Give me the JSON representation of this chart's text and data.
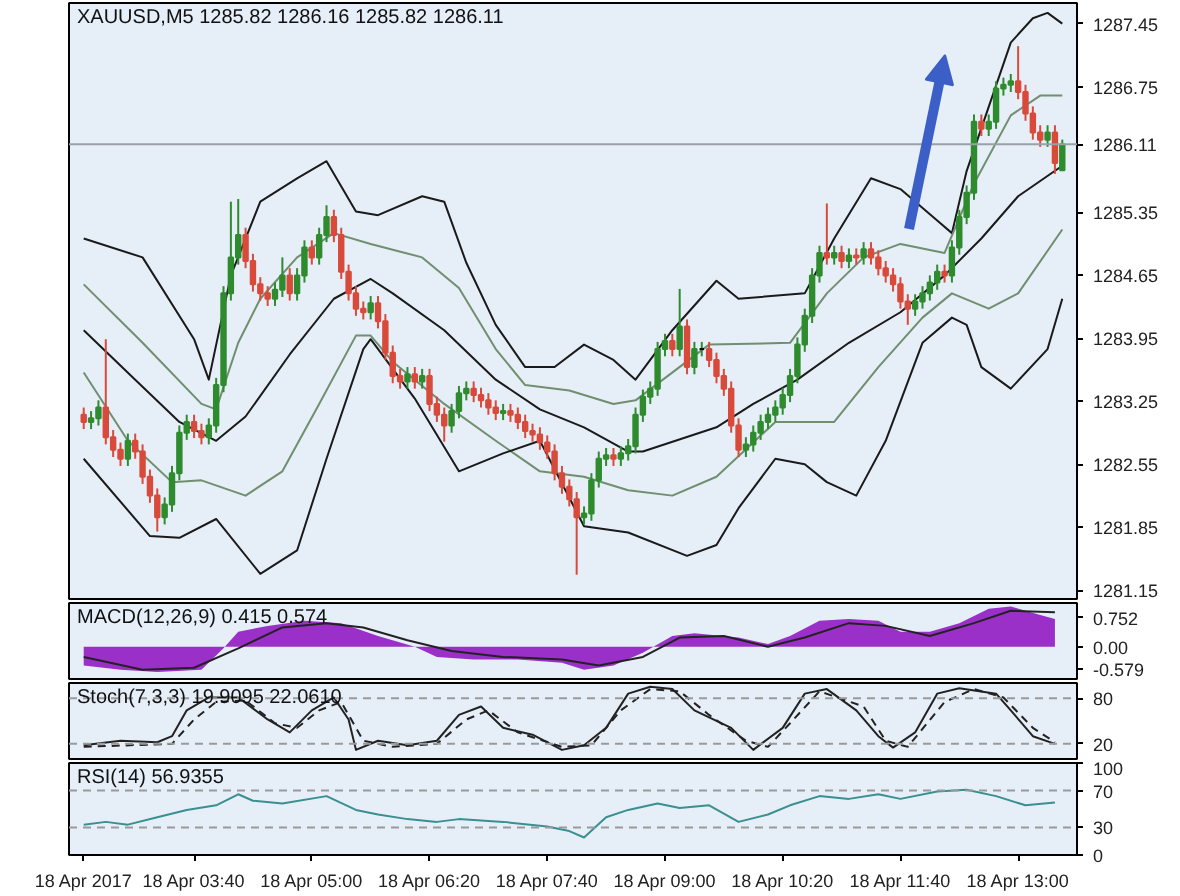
{
  "chart_data": [
    {
      "type": "candlestick",
      "title": "XAUUSD,M5 1285.82 1286.16 1285.82 1286.11",
      "xlim": [
        "2017-04-18T02:15",
        "2017-04-18T13:40"
      ],
      "ylim": [
        1281.05,
        1287.68
      ],
      "yticks": [
        1287.45,
        1286.75,
        1285.35,
        1284.65,
        1283.95,
        1283.25,
        1282.55,
        1281.85,
        1281.15
      ],
      "tick_labels": "y",
      "grid": false,
      "x": [
        "2017-04-18T02:25",
        "2017-04-18T02:30",
        "2017-04-18T02:35",
        "2017-04-18T02:40",
        "2017-04-18T02:45",
        "2017-04-18T02:50",
        "2017-04-18T02:55",
        "2017-04-18T03:00",
        "2017-04-18T03:05",
        "2017-04-18T03:10",
        "2017-04-18T03:15",
        "2017-04-18T03:20",
        "2017-04-18T03:25",
        "2017-04-18T03:30",
        "2017-04-18T03:35",
        "2017-04-18T03:40",
        "2017-04-18T03:45",
        "2017-04-18T03:50",
        "2017-04-18T03:55",
        "2017-04-18T04:00",
        "2017-04-18T04:05",
        "2017-04-18T04:10",
        "2017-04-18T04:15",
        "2017-04-18T04:20",
        "2017-04-18T04:25",
        "2017-04-18T04:30",
        "2017-04-18T04:35",
        "2017-04-18T04:40",
        "2017-04-18T04:45",
        "2017-04-18T04:50",
        "2017-04-18T04:55",
        "2017-04-18T05:00",
        "2017-04-18T05:05",
        "2017-04-18T05:10",
        "2017-04-18T05:15",
        "2017-04-18T05:20",
        "2017-04-18T05:25",
        "2017-04-18T05:30",
        "2017-04-18T05:35",
        "2017-04-18T05:40",
        "2017-04-18T05:45",
        "2017-04-18T05:50",
        "2017-04-18T05:55",
        "2017-04-18T06:00",
        "2017-04-18T06:05",
        "2017-04-18T06:10",
        "2017-04-18T06:15",
        "2017-04-18T06:20",
        "2017-04-18T06:25",
        "2017-04-18T06:30",
        "2017-04-18T06:35",
        "2017-04-18T06:40",
        "2017-04-18T06:45",
        "2017-04-18T06:50",
        "2017-04-18T06:55",
        "2017-04-18T07:00",
        "2017-04-18T07:05",
        "2017-04-18T07:10",
        "2017-04-18T07:15",
        "2017-04-18T07:20",
        "2017-04-18T07:25",
        "2017-04-18T07:30",
        "2017-04-18T07:35",
        "2017-04-18T07:40",
        "2017-04-18T07:45",
        "2017-04-18T07:50",
        "2017-04-18T07:55",
        "2017-04-18T08:00",
        "2017-04-18T08:05",
        "2017-04-18T08:10",
        "2017-04-18T08:15",
        "2017-04-18T08:20",
        "2017-04-18T08:25",
        "2017-04-18T08:30",
        "2017-04-18T08:35",
        "2017-04-18T08:40",
        "2017-04-18T08:45",
        "2017-04-18T08:50",
        "2017-04-18T08:55",
        "2017-04-18T09:00",
        "2017-04-18T09:05",
        "2017-04-18T09:10",
        "2017-04-18T09:15",
        "2017-04-18T09:20",
        "2017-04-18T09:25",
        "2017-04-18T09:30",
        "2017-04-18T09:35",
        "2017-04-18T09:40",
        "2017-04-18T09:45",
        "2017-04-18T09:50",
        "2017-04-18T09:55",
        "2017-04-18T10:00",
        "2017-04-18T10:05",
        "2017-04-18T10:10",
        "2017-04-18T10:15",
        "2017-04-18T10:20",
        "2017-04-18T10:25",
        "2017-04-18T10:30",
        "2017-04-18T10:35",
        "2017-04-18T10:40",
        "2017-04-18T10:45",
        "2017-04-18T10:50",
        "2017-04-18T10:55",
        "2017-04-18T11:00",
        "2017-04-18T11:05",
        "2017-04-18T11:10",
        "2017-04-18T11:15",
        "2017-04-18T11:20",
        "2017-04-18T11:25",
        "2017-04-18T11:30",
        "2017-04-18T11:35",
        "2017-04-18T11:40",
        "2017-04-18T11:45",
        "2017-04-18T11:50",
        "2017-04-18T11:55",
        "2017-04-18T12:00",
        "2017-04-18T12:05",
        "2017-04-18T12:10",
        "2017-04-18T12:15",
        "2017-04-18T12:20",
        "2017-04-18T12:25",
        "2017-04-18T12:30",
        "2017-04-18T12:35",
        "2017-04-18T12:40",
        "2017-04-18T12:45",
        "2017-04-18T12:50",
        "2017-04-18T12:55",
        "2017-04-18T13:00",
        "2017-04-18T13:05",
        "2017-04-18T13:10",
        "2017-04-18T13:15",
        "2017-04-18T13:20",
        "2017-04-18T13:25",
        "2017-04-18T13:30"
      ],
      "ohlc": [
        [
          1283.1,
          1283.18,
          1282.94,
          1283.02
        ],
        [
          1283.02,
          1283.14,
          1282.94,
          1283.06
        ],
        [
          1283.06,
          1283.26,
          1282.98,
          1283.18
        ],
        [
          1283.18,
          1283.94,
          1282.77,
          1282.85
        ],
        [
          1282.85,
          1282.93,
          1282.63,
          1282.71
        ],
        [
          1282.71,
          1282.79,
          1282.53,
          1282.61
        ],
        [
          1282.61,
          1282.89,
          1282.53,
          1282.81
        ],
        [
          1282.81,
          1282.89,
          1282.61,
          1282.69
        ],
        [
          1282.69,
          1282.77,
          1282.33,
          1282.41
        ],
        [
          1282.41,
          1282.49,
          1282.12,
          1282.2
        ],
        [
          1282.2,
          1282.28,
          1281.8,
          1281.96
        ],
        [
          1281.96,
          1282.18,
          1281.88,
          1282.1
        ],
        [
          1282.1,
          1282.53,
          1282.02,
          1282.45
        ],
        [
          1282.45,
          1282.98,
          1282.37,
          1282.9
        ],
        [
          1282.9,
          1283.1,
          1282.82,
          1283.02
        ],
        [
          1283.02,
          1283.1,
          1282.84,
          1282.92
        ],
        [
          1282.92,
          1283.0,
          1282.77,
          1282.85
        ],
        [
          1282.85,
          1283.06,
          1282.77,
          1282.98
        ],
        [
          1282.98,
          1283.51,
          1282.9,
          1283.43
        ],
        [
          1283.43,
          1284.53,
          1283.35,
          1284.45
        ],
        [
          1284.45,
          1285.47,
          1284.37,
          1284.85
        ],
        [
          1284.85,
          1285.5,
          1284.77,
          1285.1
        ],
        [
          1285.1,
          1285.18,
          1284.73,
          1284.81
        ],
        [
          1284.81,
          1284.89,
          1284.47,
          1284.55
        ],
        [
          1284.55,
          1284.63,
          1284.37,
          1284.45
        ],
        [
          1284.45,
          1284.53,
          1284.31,
          1284.39
        ],
        [
          1284.39,
          1284.57,
          1284.31,
          1284.49
        ],
        [
          1284.49,
          1284.85,
          1284.41,
          1284.65
        ],
        [
          1284.65,
          1284.73,
          1284.37,
          1284.45
        ],
        [
          1284.45,
          1284.73,
          1284.37,
          1284.65
        ],
        [
          1284.65,
          1285.04,
          1284.57,
          1284.96
        ],
        [
          1284.96,
          1285.04,
          1284.77,
          1284.85
        ],
        [
          1284.85,
          1285.18,
          1284.77,
          1285.1
        ],
        [
          1285.1,
          1285.43,
          1285.02,
          1285.3
        ],
        [
          1285.3,
          1285.38,
          1285.02,
          1285.1
        ],
        [
          1285.1,
          1285.18,
          1284.61,
          1284.69
        ],
        [
          1284.69,
          1284.77,
          1284.37,
          1284.45
        ],
        [
          1284.45,
          1284.53,
          1284.2,
          1284.28
        ],
        [
          1284.28,
          1284.36,
          1284.16,
          1284.24
        ],
        [
          1284.24,
          1284.42,
          1284.16,
          1284.34
        ],
        [
          1284.34,
          1284.42,
          1284.06,
          1284.14
        ],
        [
          1284.14,
          1284.22,
          1283.71,
          1283.79
        ],
        [
          1283.79,
          1283.87,
          1283.45,
          1283.53
        ],
        [
          1283.53,
          1283.61,
          1283.39,
          1283.47
        ],
        [
          1283.47,
          1283.63,
          1283.39,
          1283.55
        ],
        [
          1283.55,
          1283.63,
          1283.39,
          1283.47
        ],
        [
          1283.47,
          1283.61,
          1283.39,
          1283.53
        ],
        [
          1283.53,
          1283.61,
          1283.14,
          1283.22
        ],
        [
          1283.22,
          1283.3,
          1283.02,
          1283.1
        ],
        [
          1283.1,
          1283.18,
          1282.8,
          1282.98
        ],
        [
          1282.98,
          1283.22,
          1282.9,
          1283.14
        ],
        [
          1283.14,
          1283.42,
          1283.06,
          1283.34
        ],
        [
          1283.34,
          1283.47,
          1283.26,
          1283.39
        ],
        [
          1283.39,
          1283.47,
          1283.24,
          1283.32
        ],
        [
          1283.32,
          1283.4,
          1283.18,
          1283.26
        ],
        [
          1283.26,
          1283.34,
          1283.1,
          1283.18
        ],
        [
          1283.18,
          1283.26,
          1283.04,
          1283.12
        ],
        [
          1283.12,
          1283.22,
          1283.04,
          1283.14
        ],
        [
          1283.14,
          1283.22,
          1283.02,
          1283.1
        ],
        [
          1283.1,
          1283.18,
          1282.94,
          1283.02
        ],
        [
          1283.02,
          1283.1,
          1282.84,
          1282.92
        ],
        [
          1282.92,
          1283.0,
          1282.8,
          1282.88
        ],
        [
          1282.88,
          1282.96,
          1282.71,
          1282.79
        ],
        [
          1282.79,
          1282.87,
          1282.61,
          1282.69
        ],
        [
          1282.69,
          1282.77,
          1282.37,
          1282.45
        ],
        [
          1282.45,
          1282.53,
          1282.22,
          1282.3
        ],
        [
          1282.3,
          1282.38,
          1282.08,
          1282.16
        ],
        [
          1282.16,
          1282.24,
          1281.32,
          1281.96
        ],
        [
          1281.96,
          1282.08,
          1281.88,
          1282.0
        ],
        [
          1282.0,
          1282.45,
          1281.92,
          1282.37
        ],
        [
          1282.37,
          1282.69,
          1282.29,
          1282.61
        ],
        [
          1282.61,
          1282.73,
          1282.53,
          1282.65
        ],
        [
          1282.65,
          1282.73,
          1282.53,
          1282.61
        ],
        [
          1282.61,
          1282.75,
          1282.53,
          1282.67
        ],
        [
          1282.67,
          1282.83,
          1282.59,
          1282.75
        ],
        [
          1282.75,
          1283.18,
          1282.67,
          1283.1
        ],
        [
          1283.1,
          1283.38,
          1283.02,
          1283.3
        ],
        [
          1283.3,
          1283.47,
          1283.22,
          1283.39
        ],
        [
          1283.39,
          1283.91,
          1283.31,
          1283.83
        ],
        [
          1283.83,
          1284.0,
          1283.75,
          1283.92
        ],
        [
          1283.92,
          1284.0,
          1283.75,
          1283.83
        ],
        [
          1283.83,
          1284.5,
          1283.75,
          1284.08
        ],
        [
          1284.08,
          1284.16,
          1283.55,
          1283.63
        ],
        [
          1283.63,
          1283.91,
          1283.55,
          1283.83
        ],
        [
          1283.83,
          1283.91,
          1283.75,
          1283.83
        ],
        [
          1283.83,
          1283.91,
          1283.63,
          1283.71
        ],
        [
          1283.71,
          1283.79,
          1283.45,
          1283.53
        ],
        [
          1283.53,
          1283.61,
          1283.31,
          1283.39
        ],
        [
          1283.39,
          1283.47,
          1282.9,
          1282.98
        ],
        [
          1282.98,
          1283.06,
          1282.63,
          1282.71
        ],
        [
          1282.71,
          1282.85,
          1282.63,
          1282.77
        ],
        [
          1282.77,
          1282.98,
          1282.69,
          1282.9
        ],
        [
          1282.9,
          1283.1,
          1282.82,
          1283.02
        ],
        [
          1283.02,
          1283.18,
          1282.94,
          1283.1
        ],
        [
          1283.1,
          1283.26,
          1283.02,
          1283.18
        ],
        [
          1283.18,
          1283.4,
          1283.1,
          1283.32
        ],
        [
          1283.32,
          1283.61,
          1283.24,
          1283.53
        ],
        [
          1283.53,
          1283.96,
          1283.45,
          1283.88
        ],
        [
          1283.88,
          1284.28,
          1283.8,
          1284.2
        ],
        [
          1284.2,
          1284.73,
          1284.12,
          1284.65
        ],
        [
          1284.65,
          1284.98,
          1284.57,
          1284.9
        ],
        [
          1284.9,
          1285.45,
          1284.77,
          1284.85
        ],
        [
          1284.85,
          1284.98,
          1284.77,
          1284.9
        ],
        [
          1284.9,
          1284.98,
          1284.73,
          1284.81
        ],
        [
          1284.81,
          1284.95,
          1284.73,
          1284.87
        ],
        [
          1284.87,
          1284.95,
          1284.77,
          1284.85
        ],
        [
          1284.85,
          1285.02,
          1284.77,
          1284.94
        ],
        [
          1284.94,
          1285.02,
          1284.77,
          1284.85
        ],
        [
          1284.85,
          1284.93,
          1284.65,
          1284.73
        ],
        [
          1284.73,
          1284.81,
          1284.57,
          1284.65
        ],
        [
          1284.65,
          1284.73,
          1284.47,
          1284.55
        ],
        [
          1284.55,
          1284.63,
          1284.28,
          1284.36
        ],
        [
          1284.36,
          1284.44,
          1284.1,
          1284.28
        ],
        [
          1284.28,
          1284.44,
          1284.2,
          1284.36
        ],
        [
          1284.36,
          1284.53,
          1284.28,
          1284.45
        ],
        [
          1284.45,
          1284.65,
          1284.37,
          1284.57
        ],
        [
          1284.57,
          1284.77,
          1284.49,
          1284.69
        ],
        [
          1284.69,
          1284.77,
          1284.57,
          1284.65
        ],
        [
          1284.65,
          1285.04,
          1284.57,
          1284.96
        ],
        [
          1284.96,
          1285.38,
          1284.88,
          1285.3
        ],
        [
          1285.3,
          1285.65,
          1285.22,
          1285.57
        ],
        [
          1285.57,
          1286.44,
          1285.49,
          1286.36
        ],
        [
          1286.36,
          1286.44,
          1286.2,
          1286.28
        ],
        [
          1286.28,
          1286.44,
          1286.2,
          1286.36
        ],
        [
          1286.36,
          1286.81,
          1286.28,
          1286.73
        ],
        [
          1286.73,
          1286.85,
          1286.65,
          1286.77
        ],
        [
          1286.77,
          1286.89,
          1286.69,
          1286.81
        ],
        [
          1286.81,
          1287.2,
          1286.61,
          1286.69
        ],
        [
          1286.69,
          1286.77,
          1286.37,
          1286.45
        ],
        [
          1286.45,
          1286.53,
          1286.16,
          1286.24
        ],
        [
          1286.24,
          1286.32,
          1286.08,
          1286.16
        ],
        [
          1286.16,
          1286.32,
          1286.08,
          1286.24
        ],
        [
          1286.24,
          1286.32,
          1285.78,
          1285.9
        ],
        [
          1285.82,
          1286.16,
          1285.82,
          1286.11
        ]
      ],
      "series": [
        {
          "type": "line",
          "color": "#1a1a1a",
          "x": [
            "2017-04-18T02:25",
            "2017-04-18T03:05",
            "2017-04-18T03:40",
            "2017-04-18T03:50",
            "2017-04-18T04:05",
            "2017-04-18T04:25",
            "2017-04-18T04:50",
            "2017-04-18T05:10",
            "2017-04-18T05:30",
            "2017-04-18T05:45",
            "2017-04-18T06:15",
            "2017-04-18T06:30",
            "2017-04-18T06:45",
            "2017-04-18T07:05",
            "2017-04-18T07:25",
            "2017-04-18T07:45",
            "2017-04-18T08:05",
            "2017-04-18T08:25",
            "2017-04-18T08:40",
            "2017-04-18T09:05",
            "2017-04-18T09:35",
            "2017-04-18T09:50",
            "2017-04-18T10:35",
            "2017-04-18T10:55",
            "2017-04-18T11:20",
            "2017-04-18T11:40",
            "2017-04-18T12:05",
            "2017-04-18T12:15",
            "2017-04-18T12:25",
            "2017-04-18T12:55",
            "2017-04-18T13:10",
            "2017-04-18T13:20",
            "2017-04-18T13:30"
          ],
          "values": [
            1285.06,
            1284.85,
            1283.94,
            1283.49,
            1284.65,
            1285.47,
            1285.73,
            1285.92,
            1285.36,
            1285.32,
            1285.53,
            1285.47,
            1284.79,
            1284.1,
            1283.63,
            1283.63,
            1283.88,
            1283.71,
            1283.49,
            1284.04,
            1284.59,
            1284.39,
            1284.45,
            1285.06,
            1285.73,
            1285.61,
            1285.26,
            1285.12,
            1285.81,
            1287.24,
            1287.51,
            1287.57,
            1287.45
          ]
        },
        {
          "type": "line",
          "color": "#6f8f6f",
          "x": [
            "2017-04-18T02:25",
            "2017-04-18T03:05",
            "2017-04-18T03:45",
            "2017-04-18T03:55",
            "2017-04-18T04:10",
            "2017-04-18T04:25",
            "2017-04-18T04:50",
            "2017-04-18T05:15",
            "2017-04-18T05:40",
            "2017-04-18T06:15",
            "2017-04-18T06:40",
            "2017-04-18T07:05",
            "2017-04-18T07:25",
            "2017-04-18T07:55",
            "2017-04-18T08:25",
            "2017-04-18T08:40",
            "2017-04-18T09:30",
            "2017-04-18T10:25",
            "2017-04-18T10:50",
            "2017-04-18T11:15",
            "2017-04-18T11:40",
            "2017-04-18T12:10",
            "2017-04-18T12:30",
            "2017-04-18T12:55",
            "2017-04-18T13:15",
            "2017-04-18T13:30"
          ],
          "values": [
            1284.55,
            1283.9,
            1283.22,
            1283.16,
            1283.9,
            1284.39,
            1284.85,
            1285.12,
            1285.0,
            1284.85,
            1284.51,
            1283.83,
            1283.43,
            1283.37,
            1283.22,
            1283.26,
            1283.88,
            1283.9,
            1284.45,
            1284.85,
            1285.0,
            1284.9,
            1285.67,
            1286.43,
            1286.65,
            1286.65
          ]
        },
        {
          "type": "line",
          "color": "#1a1a1a",
          "x": [
            "2017-04-18T02:25",
            "2017-04-18T03:00",
            "2017-04-18T03:30",
            "2017-04-18T03:55",
            "2017-04-18T04:15",
            "2017-04-18T04:45",
            "2017-04-18T05:15",
            "2017-04-18T05:40",
            "2017-04-18T05:55",
            "2017-04-18T06:30",
            "2017-04-18T07:05",
            "2017-04-18T07:35",
            "2017-04-18T08:05",
            "2017-04-18T08:35",
            "2017-04-18T08:45",
            "2017-04-18T09:35",
            "2017-04-18T10:00",
            "2017-04-18T10:30",
            "2017-04-18T11:05",
            "2017-04-18T11:40",
            "2017-04-18T12:10",
            "2017-04-18T12:35",
            "2017-04-18T13:00",
            "2017-04-18T13:30"
          ],
          "values": [
            1284.04,
            1283.49,
            1283.02,
            1282.81,
            1283.08,
            1283.77,
            1284.39,
            1284.61,
            1284.45,
            1284.04,
            1283.49,
            1283.16,
            1282.96,
            1282.69,
            1282.69,
            1282.96,
            1283.22,
            1283.49,
            1283.9,
            1284.24,
            1284.65,
            1285.06,
            1285.53,
            1285.87
          ]
        },
        {
          "type": "line",
          "color": "#6f8f6f",
          "x": [
            "2017-04-18T02:25",
            "2017-04-18T02:55",
            "2017-04-18T03:25",
            "2017-04-18T03:45",
            "2017-04-18T04:15",
            "2017-04-18T04:40",
            "2017-04-18T05:05",
            "2017-04-18T05:30",
            "2017-04-18T05:40",
            "2017-04-18T05:55",
            "2017-04-18T06:30",
            "2017-04-18T07:05",
            "2017-04-18T07:35",
            "2017-04-18T08:05",
            "2017-04-18T08:35",
            "2017-04-18T09:05",
            "2017-04-18T09:35",
            "2017-04-18T10:15",
            "2017-04-18T10:55",
            "2017-04-18T11:25",
            "2017-04-18T11:55",
            "2017-04-18T12:15",
            "2017-04-18T12:40",
            "2017-04-18T13:00",
            "2017-04-18T13:30"
          ],
          "values": [
            1283.57,
            1282.81,
            1282.35,
            1282.37,
            1282.2,
            1282.47,
            1283.22,
            1283.98,
            1283.98,
            1283.69,
            1283.22,
            1282.81,
            1282.47,
            1282.41,
            1282.26,
            1282.2,
            1282.41,
            1283.02,
            1283.02,
            1283.63,
            1284.18,
            1284.45,
            1284.28,
            1284.45,
            1285.16
          ]
        },
        {
          "type": "line",
          "color": "#1a1a1a",
          "x": [
            "2017-04-18T02:25",
            "2017-04-18T03:10",
            "2017-04-18T03:30",
            "2017-04-18T03:55",
            "2017-04-18T04:25",
            "2017-04-18T04:50",
            "2017-04-18T05:10",
            "2017-04-18T05:35",
            "2017-04-18T05:40",
            "2017-04-18T06:10",
            "2017-04-18T06:40",
            "2017-04-18T07:10",
            "2017-04-18T07:35",
            "2017-04-18T08:05",
            "2017-04-18T08:35",
            "2017-04-18T09:15",
            "2017-04-18T09:35",
            "2017-04-18T09:50",
            "2017-04-18T10:15",
            "2017-04-18T10:35",
            "2017-04-18T10:50",
            "2017-04-18T11:10",
            "2017-04-18T11:30",
            "2017-04-18T11:55",
            "2017-04-18T12:15",
            "2017-04-18T12:25",
            "2017-04-18T12:35",
            "2017-04-18T12:55",
            "2017-04-18T13:20",
            "2017-04-18T13:30"
          ],
          "values": [
            1282.61,
            1281.75,
            1281.73,
            1281.94,
            1281.33,
            1281.59,
            1282.61,
            1283.83,
            1283.94,
            1283.28,
            1282.47,
            1282.67,
            1282.81,
            1281.86,
            1281.79,
            1281.53,
            1281.65,
            1282.06,
            1282.61,
            1282.55,
            1282.35,
            1282.2,
            1282.81,
            1283.9,
            1284.18,
            1284.1,
            1283.63,
            1283.39,
            1283.83,
            1284.39
          ]
        }
      ],
      "ref_lines": [
        {
          "axis": "y",
          "value": 1286.11,
          "label": "1286.11",
          "color": "#9aa0a8"
        }
      ]
    },
    {
      "type": "area",
      "title": "MACD(12,26,9) 0.415 0.574",
      "xlim": [
        "2017-04-18T02:15",
        "2017-04-18T13:40"
      ],
      "ylim": [
        -0.83,
        1.13
      ],
      "yticks": [
        0.752,
        {
          "value": 0,
          "label": "0.00"
        },
        -0.579
      ],
      "tick_labels": "y",
      "grid": false,
      "series": [
        {
          "type": "area",
          "color": "#9b30c8",
          "x": [
            "2017-04-18T02:25",
            "2017-04-18T02:50",
            "2017-04-18T03:15",
            "2017-04-18T03:45",
            "2017-04-18T04:00",
            "2017-04-18T04:10",
            "2017-04-18T04:30",
            "2017-04-18T04:55",
            "2017-04-18T05:20",
            "2017-04-18T05:45",
            "2017-04-18T06:10",
            "2017-04-18T06:25",
            "2017-04-18T06:50",
            "2017-04-18T07:20",
            "2017-04-18T07:50",
            "2017-04-18T08:05",
            "2017-04-18T08:25",
            "2017-04-18T08:45",
            "2017-04-18T09:05",
            "2017-04-18T09:20",
            "2017-04-18T09:50",
            "2017-04-18T10:10",
            "2017-04-18T10:25",
            "2017-04-18T10:45",
            "2017-04-18T11:05",
            "2017-04-18T11:25",
            "2017-04-18T11:40",
            "2017-04-18T12:00",
            "2017-04-18T12:20",
            "2017-04-18T12:40",
            "2017-04-18T12:55",
            "2017-04-18T13:15",
            "2017-04-18T13:25"
          ],
          "values": [
            -0.48,
            -0.59,
            -0.65,
            -0.59,
            -0.04,
            0.39,
            0.54,
            0.67,
            0.61,
            0.28,
            0,
            -0.26,
            -0.33,
            -0.33,
            -0.41,
            -0.59,
            -0.48,
            -0.15,
            0.28,
            0.35,
            0.24,
            0.07,
            0.28,
            0.67,
            0.72,
            0.67,
            0.39,
            0.39,
            0.61,
            0.98,
            1.04,
            0.82,
            0.72
          ]
        },
        {
          "type": "line",
          "color": "#222222",
          "x": [
            "2017-04-18T02:25",
            "2017-04-18T03:05",
            "2017-04-18T03:40",
            "2017-04-18T04:10",
            "2017-04-18T04:40",
            "2017-04-18T05:10",
            "2017-04-18T05:35",
            "2017-04-18T06:05",
            "2017-04-18T06:35",
            "2017-04-18T07:10",
            "2017-04-18T07:50",
            "2017-04-18T08:15",
            "2017-04-18T08:45",
            "2017-04-18T09:10",
            "2017-04-18T09:40",
            "2017-04-18T10:10",
            "2017-04-18T10:35",
            "2017-04-18T11:05",
            "2017-04-18T11:30",
            "2017-04-18T12:00",
            "2017-04-18T12:30",
            "2017-04-18T12:55",
            "2017-04-18T13:25"
          ],
          "values": [
            -0.26,
            -0.59,
            -0.54,
            -0.04,
            0.5,
            0.61,
            0.5,
            0.17,
            -0.11,
            -0.26,
            -0.33,
            -0.48,
            -0.26,
            0.24,
            0.28,
            0,
            0.24,
            0.61,
            0.54,
            0.28,
            0.61,
            0.93,
            0.89
          ]
        }
      ]
    },
    {
      "type": "line",
      "title": "Stoch(7,3,3) 19.9095 22.0610",
      "xlim": [
        "2017-04-18T02:15",
        "2017-04-18T13:40"
      ],
      "ylim": [
        0,
        100
      ],
      "yticks": [
        80,
        20
      ],
      "tick_labels": "y",
      "grid": false,
      "series": [
        {
          "color": "#222222",
          "line_style": "solid",
          "x": [
            "2017-04-18T02:25",
            "2017-04-18T02:50",
            "2017-04-18T03:15",
            "2017-04-18T03:25",
            "2017-04-18T03:35",
            "2017-04-18T03:50",
            "2017-04-18T04:10",
            "2017-04-18T04:30",
            "2017-04-18T04:45",
            "2017-04-18T05:00",
            "2017-04-18T05:15",
            "2017-04-18T05:25",
            "2017-04-18T05:30",
            "2017-04-18T05:45",
            "2017-04-18T06:05",
            "2017-04-18T06:25",
            "2017-04-18T06:40",
            "2017-04-18T06:55",
            "2017-04-18T07:10",
            "2017-04-18T07:30",
            "2017-04-18T07:50",
            "2017-04-18T08:05",
            "2017-04-18T08:20",
            "2017-04-18T08:35",
            "2017-04-18T08:50",
            "2017-04-18T09:05",
            "2017-04-18T09:20",
            "2017-04-18T09:45",
            "2017-04-18T10:00",
            "2017-04-18T10:20",
            "2017-04-18T10:35",
            "2017-04-18T10:50",
            "2017-04-18T11:10",
            "2017-04-18T11:25",
            "2017-04-18T11:35",
            "2017-04-18T11:50",
            "2017-04-18T12:05",
            "2017-04-18T12:20",
            "2017-04-18T12:45",
            "2017-04-18T12:55",
            "2017-04-18T13:10",
            "2017-04-18T13:25"
          ],
          "values": [
            18,
            24,
            22,
            30,
            64,
            81,
            81,
            52,
            35,
            64,
            81,
            52,
            12,
            24,
            18,
            24,
            58,
            69,
            41,
            32,
            12,
            18,
            41,
            86,
            95,
            92,
            64,
            41,
            12,
            41,
            86,
            92,
            64,
            30,
            15,
            35,
            86,
            93,
            86,
            64,
            30,
            19.91
          ]
        },
        {
          "color": "#222222",
          "line_style": "dashed",
          "x": [
            "2017-04-18T02:25",
            "2017-04-18T03:25",
            "2017-04-18T03:40",
            "2017-04-18T03:55",
            "2017-04-18T04:15",
            "2017-04-18T04:35",
            "2017-04-18T04:50",
            "2017-04-18T05:05",
            "2017-04-18T05:20",
            "2017-04-18T05:35",
            "2017-04-18T05:55",
            "2017-04-18T06:25",
            "2017-04-18T06:45",
            "2017-04-18T07:00",
            "2017-04-18T07:20",
            "2017-04-18T07:50",
            "2017-04-18T08:10",
            "2017-04-18T08:30",
            "2017-04-18T08:50",
            "2017-04-18T09:10",
            "2017-04-18T09:30",
            "2017-04-18T09:55",
            "2017-04-18T10:10",
            "2017-04-18T10:25",
            "2017-04-18T10:45",
            "2017-04-18T11:15",
            "2017-04-18T11:30",
            "2017-04-18T11:45",
            "2017-04-18T12:10",
            "2017-04-18T12:30",
            "2017-04-18T12:50",
            "2017-04-18T13:10",
            "2017-04-18T13:25"
          ],
          "values": [
            16,
            20,
            52,
            75,
            77,
            47,
            41,
            64,
            75,
            24,
            16,
            20,
            52,
            64,
            35,
            16,
            18,
            64,
            92,
            89,
            58,
            24,
            16,
            47,
            89,
            69,
            24,
            16,
            75,
            92,
            81,
            41,
            22.06
          ]
        }
      ],
      "ref_lines": [
        {
          "axis": "y",
          "value": 80,
          "color": "#9a9a9a",
          "line_style": "dashed"
        },
        {
          "axis": "y",
          "value": 20,
          "color": "#9a9a9a",
          "line_style": "dashed"
        }
      ]
    },
    {
      "type": "line",
      "title": "RSI(14) 56.9355",
      "xlim": [
        "2017-04-18T02:15",
        "2017-04-18T13:40"
      ],
      "ylim": [
        0,
        100
      ],
      "yticks": [
        100,
        70,
        30,
        0
      ],
      "grid": false,
      "xticks": [
        {
          "value": "2017-04-18T02:25",
          "label": "18 Apr 2017"
        },
        {
          "value": "2017-04-18T03:40",
          "label": "18 Apr 03:40"
        },
        {
          "value": "2017-04-18T05:00",
          "label": "18 Apr 05:00"
        },
        {
          "value": "2017-04-18T06:20",
          "label": "18 Apr 06:20"
        },
        {
          "value": "2017-04-18T07:40",
          "label": "18 Apr 07:40"
        },
        {
          "value": "2017-04-18T09:00",
          "label": "18 Apr 09:00"
        },
        {
          "value": "2017-04-18T10:20",
          "label": "18 Apr 10:20"
        },
        {
          "value": "2017-04-18T11:40",
          "label": "18 Apr 11:40"
        },
        {
          "value": "2017-04-18T13:00",
          "label": "18 Apr 13:00"
        }
      ],
      "series": [
        {
          "color": "#3a8f8f",
          "x": [
            "2017-04-18T02:25",
            "2017-04-18T02:40",
            "2017-04-18T02:55",
            "2017-04-18T03:15",
            "2017-04-18T03:35",
            "2017-04-18T03:55",
            "2017-04-18T04:10",
            "2017-04-18T04:20",
            "2017-04-18T04:40",
            "2017-04-18T05:10",
            "2017-04-18T05:30",
            "2017-04-18T05:45",
            "2017-04-18T06:05",
            "2017-04-18T06:25",
            "2017-04-18T06:40",
            "2017-04-18T07:10",
            "2017-04-18T07:40",
            "2017-04-18T07:55",
            "2017-04-18T08:05",
            "2017-04-18T08:20",
            "2017-04-18T08:35",
            "2017-04-18T08:55",
            "2017-04-18T09:10",
            "2017-04-18T09:30",
            "2017-04-18T09:50",
            "2017-04-18T10:10",
            "2017-04-18T10:25",
            "2017-04-18T10:45",
            "2017-04-18T11:05",
            "2017-04-18T11:25",
            "2017-04-18T11:40",
            "2017-04-18T12:05",
            "2017-04-18T12:25",
            "2017-04-18T12:45",
            "2017-04-18T13:05",
            "2017-04-18T13:25"
          ],
          "values": [
            33,
            36,
            33,
            41,
            49,
            54,
            66,
            59,
            56,
            64,
            49,
            44,
            39,
            36,
            39,
            36,
            31,
            26,
            19,
            41,
            49,
            56,
            51,
            54,
            36,
            44,
            54,
            64,
            61,
            66,
            61,
            69,
            71,
            64,
            54,
            56.94
          ]
        }
      ],
      "ref_lines": [
        {
          "axis": "y",
          "value": 70,
          "color": "#9a9a9a",
          "line_style": "dashed"
        },
        {
          "axis": "y",
          "value": 30,
          "color": "#9a9a9a",
          "line_style": "dashed"
        }
      ]
    }
  ]
}
